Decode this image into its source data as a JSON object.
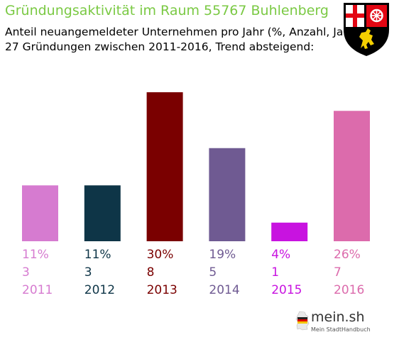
{
  "header": {
    "title": "Gründungsaktivität im Raum 55767 Buhlenberg",
    "subtitle_line1": "Anteil neuangemeldeter Unternehmen pro Jahr (%, Anzahl, Jahr)",
    "subtitle_line2": "27 Gründungen zwischen 2011-2016, Trend absteigend:"
  },
  "crest": {
    "icon": "coat-of-arms-icon"
  },
  "brand": {
    "name": "mein.sh",
    "tagline": "Mein StadtHandbuch",
    "icon": "germany-map-icon"
  },
  "colors": {
    "title": "#7ac943"
  },
  "chart_data": {
    "type": "bar",
    "categories": [
      "2011",
      "2012",
      "2013",
      "2014",
      "2015",
      "2016"
    ],
    "percent_labels": [
      "11%",
      "11%",
      "30%",
      "19%",
      "4%",
      "26%"
    ],
    "values": [
      3,
      3,
      8,
      5,
      1,
      7
    ],
    "colors": [
      "#d67bd0",
      "#0e3547",
      "#7a0000",
      "#6f5a92",
      "#c813e0",
      "#dc6bac"
    ],
    "grid": false,
    "legend": "none"
  }
}
